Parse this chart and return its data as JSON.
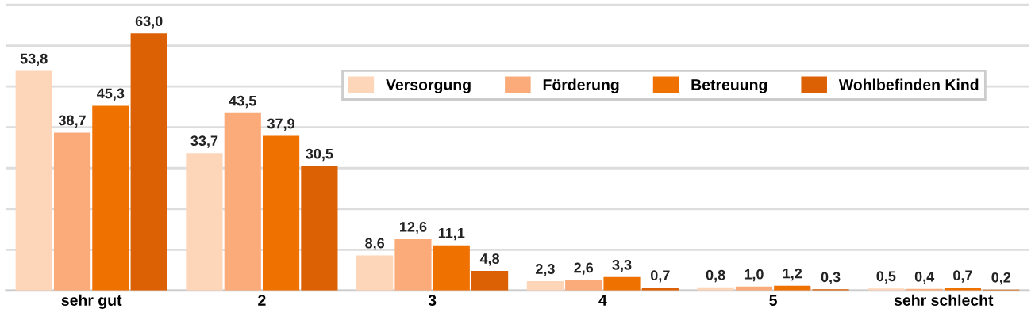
{
  "chart_data": {
    "type": "bar",
    "categories": [
      "sehr gut",
      "2",
      "3",
      "4",
      "5",
      "sehr schlecht"
    ],
    "series": [
      {
        "name": "Versorgung",
        "color": "#fdd5b8",
        "values": [
          53.8,
          33.7,
          8.6,
          2.3,
          0.8,
          0.5
        ],
        "value_labels": [
          "53,8",
          "33,7",
          "8,6",
          "2,3",
          "0,8",
          "0,5"
        ]
      },
      {
        "name": "Förderung",
        "color": "#fbaa7a",
        "values": [
          38.7,
          43.5,
          12.6,
          2.6,
          1.0,
          0.4
        ],
        "value_labels": [
          "38,7",
          "43,5",
          "12,6",
          "2,6",
          "1,0",
          "0,4"
        ]
      },
      {
        "name": "Betreuung",
        "color": "#ef7100",
        "values": [
          45.3,
          37.9,
          11.1,
          3.3,
          1.2,
          0.7
        ],
        "value_labels": [
          "45,3",
          "37,9",
          "11,1",
          "3,3",
          "1,2",
          "0,7"
        ]
      },
      {
        "name": "Wohlbefinden Kind",
        "color": "#dc6004",
        "values": [
          63.0,
          30.5,
          4.8,
          0.7,
          0.3,
          0.2
        ],
        "value_labels": [
          "63,0",
          "30,5",
          "4,8",
          "0,7",
          "0,3",
          "0,2"
        ]
      }
    ],
    "grid": "y",
    "legend": "top right",
    "tick_labels": "x"
  }
}
